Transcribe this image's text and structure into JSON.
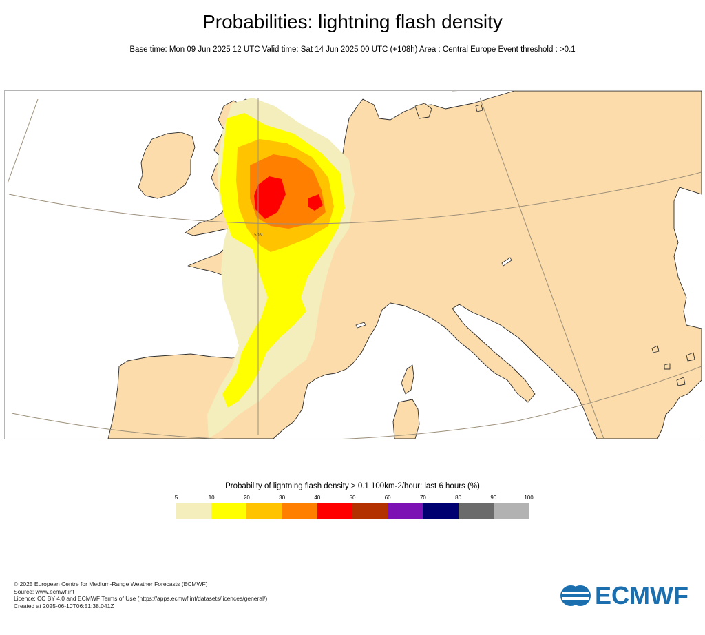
{
  "title": "Probabilities: lightning flash density",
  "subtitle": "Base time: Mon 09 Jun 2025 12 UTC Valid time: Sat 14 Jun 2025 00 UTC (+108h) Area : Central Europe Event threshold : >0.1",
  "map": {
    "lat_label": "50N",
    "colors": {
      "land": "#fcdcaa",
      "sea": "#ffffff",
      "coast": "#2d2d2d",
      "graticule": "#9c8f7a"
    }
  },
  "legend": {
    "title": "Probability of lightning flash density > 0.1 100km-2/hour: last 6 hours (%)",
    "ticks": [
      "5",
      "10",
      "20",
      "30",
      "40",
      "50",
      "60",
      "70",
      "80",
      "90",
      "100"
    ],
    "colors": [
      "#f3eebb",
      "#ffff00",
      "#ffc300",
      "#ff8000",
      "#ff0000",
      "#b33000",
      "#7c12b4",
      "#000070",
      "#6b6b6b",
      "#b2b2b2"
    ]
  },
  "footer": {
    "lines": [
      "© 2025 European Centre for Medium-Range Weather Forecasts (ECMWF)",
      "Source: www.ecmwf.int",
      "Licence: CC BY 4.0 and ECMWF Terms of Use (https://apps.ecmwf.int/datasets/licences/general/)",
      "Created at 2025-06-10T06:51:38.041Z"
    ]
  },
  "logo": {
    "text": "ECMWF",
    "icon": "ecmwf-logo-icon",
    "color": "#1b6fae"
  }
}
